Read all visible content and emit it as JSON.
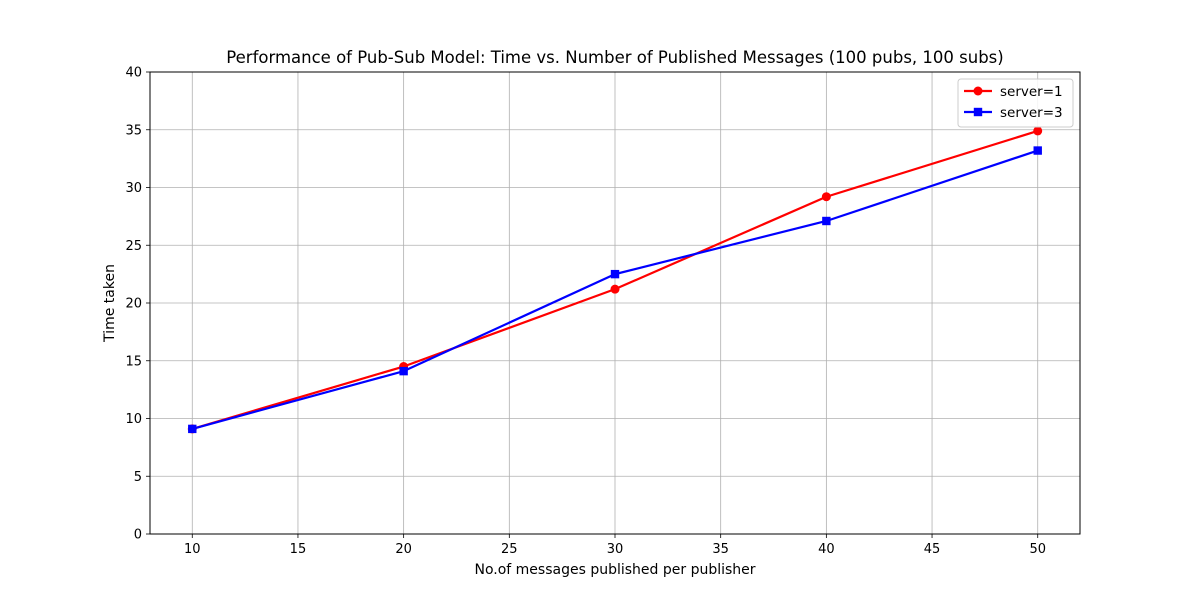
{
  "chart_data": {
    "type": "line",
    "title": "Performance of Pub-Sub Model: Time vs. Number of Published Messages (100 pubs, 100 subs)",
    "xlabel": "No.of messages published per publisher",
    "ylabel": "Time taken",
    "x": [
      10,
      20,
      30,
      40,
      50
    ],
    "xlim": [
      8,
      52
    ],
    "ylim": [
      0,
      40
    ],
    "xticks": [
      10,
      15,
      20,
      25,
      30,
      35,
      40,
      45,
      50
    ],
    "yticks": [
      0,
      5,
      10,
      15,
      20,
      25,
      30,
      35,
      40
    ],
    "grid": true,
    "legend_position": "top-right",
    "series": [
      {
        "name": "server=1",
        "values": [
          9.1,
          14.5,
          21.2,
          29.2,
          34.9
        ],
        "color": "#ff0000",
        "marker": "circle"
      },
      {
        "name": "server=3",
        "values": [
          9.1,
          14.1,
          22.5,
          27.1,
          33.2
        ],
        "color": "#0000ff",
        "marker": "square"
      }
    ]
  }
}
